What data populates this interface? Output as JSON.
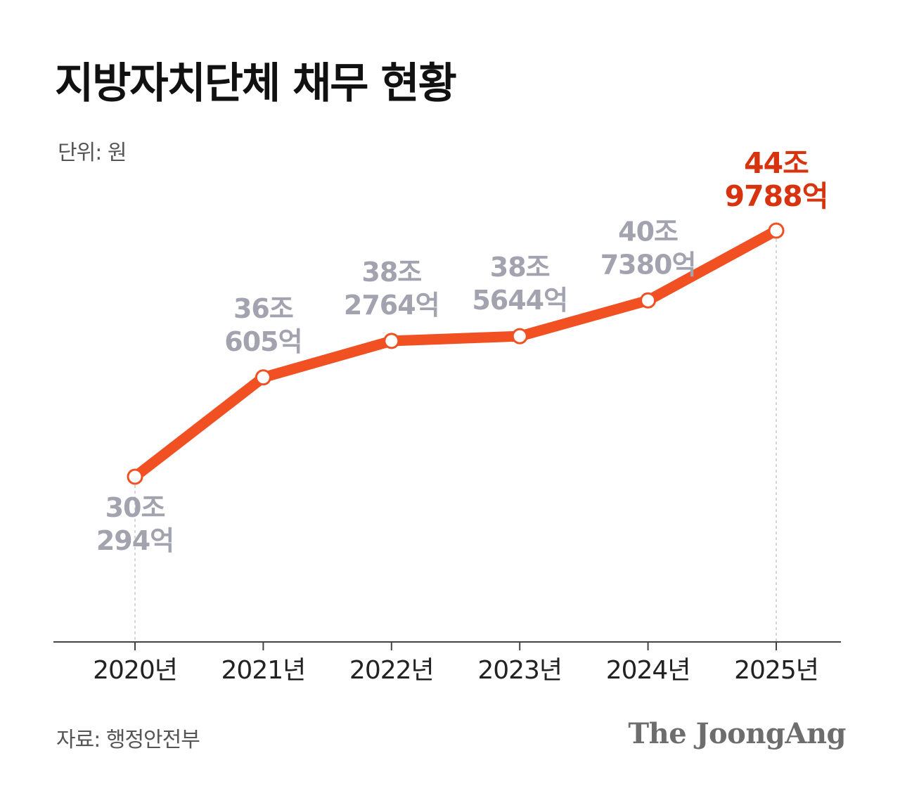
{
  "title": "지방자치단체 채무 현황",
  "unit": "단위: 원",
  "source": "자료: 행정안전부",
  "brand": "The JoongAng",
  "colors": {
    "line": "#f05022",
    "highlight_label": "#d8330f",
    "value_label": "#a3a3b0",
    "marker_fill": "#ffffff",
    "axis": "#444444"
  },
  "chart_data": {
    "type": "line",
    "categories": [
      "2020년",
      "2021년",
      "2022년",
      "2023년",
      "2024년",
      "2025년"
    ],
    "values": [
      30.0294,
      36.0605,
      38.2764,
      38.5644,
      40.738,
      44.9788
    ],
    "value_labels": [
      [
        "30조",
        "294억"
      ],
      [
        "36조",
        "605억"
      ],
      [
        "38조",
        "2764억"
      ],
      [
        "38조",
        "5644억"
      ],
      [
        "40조",
        "7380억"
      ],
      [
        "44조",
        "9788억"
      ]
    ],
    "highlight_index": 5,
    "title": "지방자치단체 채무 현황",
    "ylabel": "",
    "grid": false
  }
}
